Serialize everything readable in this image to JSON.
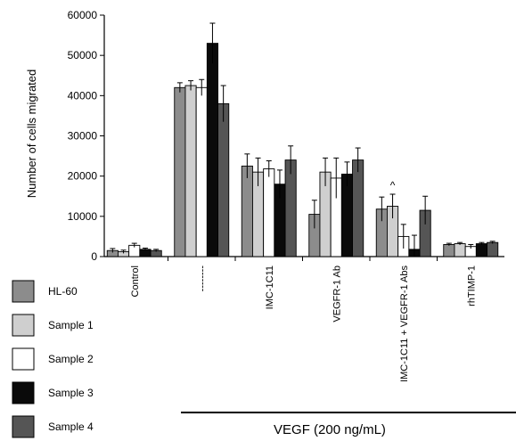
{
  "chart_data": {
    "type": "bar",
    "ylabel": "Number of cells migrated",
    "ylim": [
      0,
      60000
    ],
    "yticks": [
      0,
      10000,
      20000,
      30000,
      40000,
      50000,
      60000
    ],
    "categories": [
      "Control",
      "--------",
      "IMC-1C11",
      "VEGFR-1 Ab",
      "IMC-1C11 + VEGFR-1 Abs",
      "rhTIMP-1"
    ],
    "series": [
      {
        "name": "HL-60",
        "color": "#8c8c8c",
        "values": [
          1500,
          42000,
          22500,
          10500,
          11800,
          3000
        ],
        "errors": [
          500,
          1200,
          3000,
          3500,
          3000,
          300
        ]
      },
      {
        "name": "Sample 1",
        "color": "#cfcfcf",
        "values": [
          1200,
          42500,
          21000,
          21000,
          12500,
          3200
        ],
        "errors": [
          400,
          1200,
          3500,
          3500,
          3000,
          300
        ]
      },
      {
        "name": "Sample 2",
        "color": "#ffffff",
        "values": [
          2800,
          42000,
          21800,
          19500,
          5000,
          2500
        ],
        "errors": [
          500,
          2000,
          2000,
          5000,
          3000,
          500
        ]
      },
      {
        "name": "Sample 3",
        "color": "#0a0a0a",
        "values": [
          1800,
          53000,
          18000,
          20500,
          1800,
          3200
        ],
        "errors": [
          300,
          5000,
          3500,
          3000,
          3500,
          300
        ]
      },
      {
        "name": "Sample 4",
        "color": "#555555",
        "values": [
          1500,
          38000,
          24000,
          24000,
          11500,
          3500
        ],
        "errors": [
          300,
          4500,
          3500,
          3000,
          3500,
          300
        ]
      }
    ],
    "annotation": {
      "text": "^",
      "category_index": 4,
      "series_index": 1
    },
    "bracket_label": "VEGF (200 ng/mL)",
    "grid": false,
    "legend": "bottom-left"
  }
}
